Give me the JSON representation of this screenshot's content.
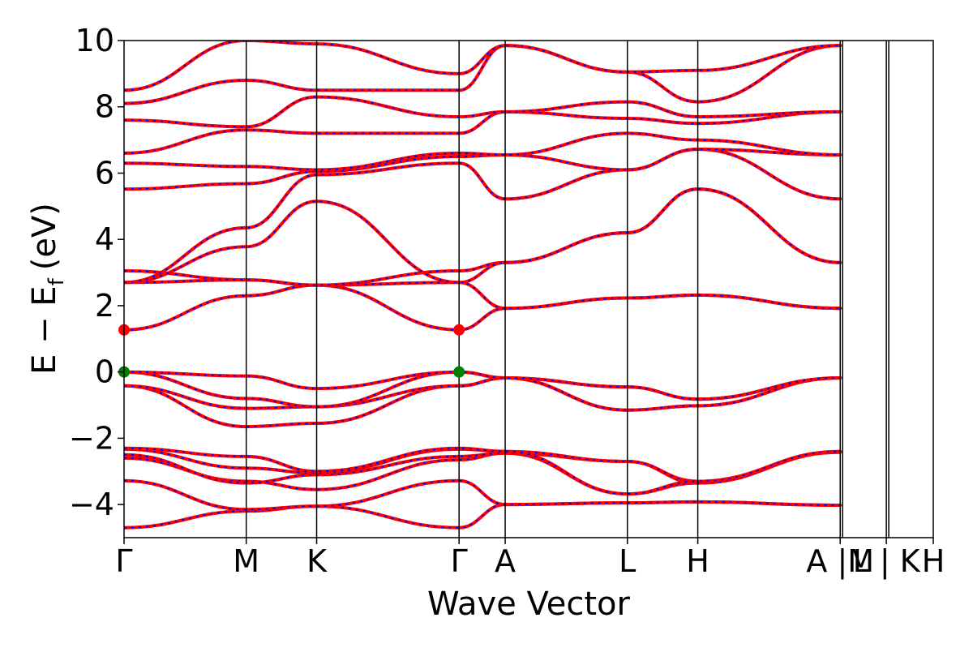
{
  "chart_data": {
    "type": "line",
    "title": "",
    "xlabel": "Wave Vector",
    "ylabel_main": "E − E",
    "ylabel_sub": "f",
    "ylabel_unit": "(eV)",
    "ylim": [
      -5,
      10
    ],
    "yticks": [
      -4,
      -2,
      0,
      2,
      4,
      6,
      8,
      10
    ],
    "ytick_labels": [
      "−4",
      "−2",
      "0",
      "2",
      "4",
      "6",
      "8",
      "10"
    ],
    "xlim": [
      0,
      10
    ],
    "kpoints": [
      {
        "label": "Γ",
        "x": 0.0
      },
      {
        "label": "M",
        "x": 1.51
      },
      {
        "label": "K",
        "x": 2.38
      },
      {
        "label": "Γ",
        "x": 4.14
      },
      {
        "label": "A",
        "x": 4.71
      },
      {
        "label": "L",
        "x": 6.22
      },
      {
        "label": "H",
        "x": 7.09
      },
      {
        "label": "A |M",
        "x": 8.85
      },
      {
        "label": "L | K",
        "x": 9.42
      },
      {
        "label": "H",
        "x": 10.0
      }
    ],
    "extra_dividers": [
      8.85,
      9.42
    ],
    "band_colors": {
      "line": "#ff0000",
      "dash": "#0000ff"
    },
    "grid": false,
    "legend": "none",
    "markers": [
      {
        "name": "cbm",
        "x": 0.0,
        "y": 1.27,
        "color": "#ff0000"
      },
      {
        "name": "cbm",
        "x": 4.14,
        "y": 1.27,
        "color": "#ff0000"
      },
      {
        "name": "vbm",
        "x": 0.0,
        "y": 0.0,
        "color": "#008000"
      },
      {
        "name": "vbm",
        "x": 4.14,
        "y": 0.0,
        "color": "#008000"
      }
    ],
    "bands": [
      {
        "name": "valence-1",
        "points": [
          [
            0,
            -4.7
          ],
          [
            1.51,
            -4.2
          ],
          [
            2.38,
            -4.05
          ],
          [
            4.14,
            -4.7
          ],
          [
            4.71,
            -4.0
          ],
          [
            6.22,
            -3.95
          ],
          [
            7.09,
            -3.92
          ],
          [
            8.85,
            -4.02
          ]
        ]
      },
      {
        "name": "valence-2",
        "points": [
          [
            0,
            -3.28
          ],
          [
            1.51,
            -4.15
          ],
          [
            2.38,
            -4.05
          ],
          [
            4.14,
            -3.28
          ],
          [
            4.71,
            -4.0
          ],
          [
            6.22,
            -3.95
          ],
          [
            7.09,
            -3.92
          ],
          [
            8.85,
            -4.02
          ]
        ]
      },
      {
        "name": "valence-3",
        "points": [
          [
            0,
            -2.6
          ],
          [
            1.51,
            -3.3
          ],
          [
            2.38,
            -3.55
          ],
          [
            4.14,
            -2.65
          ],
          [
            4.71,
            -2.45
          ],
          [
            6.22,
            -3.68
          ],
          [
            7.09,
            -3.35
          ],
          [
            8.85,
            -2.42
          ]
        ]
      },
      {
        "name": "valence-4",
        "points": [
          [
            0,
            -2.5
          ],
          [
            1.51,
            -3.35
          ],
          [
            2.38,
            -3.1
          ],
          [
            4.14,
            -2.55
          ],
          [
            4.71,
            -2.45
          ],
          [
            6.22,
            -2.7
          ],
          [
            7.09,
            -3.35
          ],
          [
            8.85,
            -2.42
          ]
        ]
      },
      {
        "name": "valence-5",
        "points": [
          [
            0,
            -2.33
          ],
          [
            1.51,
            -2.9
          ],
          [
            2.38,
            -3.05
          ],
          [
            4.14,
            -2.33
          ],
          [
            4.71,
            -2.4
          ],
          [
            6.22,
            -2.7
          ],
          [
            7.09,
            -3.3
          ],
          [
            8.85,
            -2.4
          ]
        ]
      },
      {
        "name": "valence-6",
        "points": [
          [
            0,
            -2.3
          ],
          [
            1.51,
            -2.55
          ],
          [
            2.38,
            -3.0
          ],
          [
            4.14,
            -2.3
          ],
          [
            4.71,
            -2.4
          ],
          [
            6.22,
            -3.68
          ],
          [
            7.09,
            -3.3
          ],
          [
            8.85,
            -2.4
          ]
        ]
      },
      {
        "name": "valence-7",
        "points": [
          [
            0,
            -0.42
          ],
          [
            1.51,
            -1.65
          ],
          [
            2.38,
            -1.55
          ],
          [
            4.14,
            -0.42
          ],
          [
            4.71,
            -0.18
          ],
          [
            6.22,
            -1.15
          ],
          [
            7.09,
            -1.02
          ],
          [
            8.85,
            -0.18
          ]
        ]
      },
      {
        "name": "valence-8",
        "points": [
          [
            0,
            -0.42
          ],
          [
            1.51,
            -1.1
          ],
          [
            2.38,
            -1.05
          ],
          [
            4.14,
            -0.42
          ],
          [
            4.71,
            -0.18
          ],
          [
            6.22,
            -1.15
          ],
          [
            7.09,
            -1.02
          ],
          [
            8.85,
            -0.18
          ]
        ]
      },
      {
        "name": "valence-9",
        "points": [
          [
            0,
            0.0
          ],
          [
            1.51,
            -0.8
          ],
          [
            2.38,
            -1.05
          ],
          [
            4.14,
            0.0
          ],
          [
            4.71,
            -0.18
          ],
          [
            6.22,
            -0.45
          ],
          [
            7.09,
            -0.82
          ],
          [
            8.85,
            -0.18
          ]
        ]
      },
      {
        "name": "valence-10",
        "points": [
          [
            0,
            0.0
          ],
          [
            1.51,
            -0.12
          ],
          [
            2.38,
            -0.5
          ],
          [
            4.14,
            0.0
          ],
          [
            4.71,
            -0.18
          ],
          [
            6.22,
            -0.45
          ],
          [
            7.09,
            -0.82
          ],
          [
            8.85,
            -0.18
          ]
        ]
      },
      {
        "name": "conduction-1",
        "points": [
          [
            0,
            1.27
          ],
          [
            1.51,
            2.3
          ],
          [
            2.38,
            2.62
          ],
          [
            4.14,
            1.27
          ],
          [
            4.71,
            1.92
          ],
          [
            6.22,
            2.23
          ],
          [
            7.09,
            2.32
          ],
          [
            8.85,
            1.92
          ]
        ]
      },
      {
        "name": "conduction-2",
        "points": [
          [
            0,
            2.7
          ],
          [
            1.51,
            2.78
          ],
          [
            2.38,
            2.62
          ],
          [
            4.14,
            2.7
          ],
          [
            4.71,
            1.92
          ],
          [
            6.22,
            2.23
          ],
          [
            7.09,
            2.32
          ],
          [
            8.85,
            1.92
          ]
        ]
      },
      {
        "name": "conduction-3",
        "points": [
          [
            0,
            3.05
          ],
          [
            1.51,
            2.78
          ],
          [
            2.38,
            2.62
          ],
          [
            4.14,
            3.05
          ],
          [
            4.71,
            3.3
          ],
          [
            6.22,
            4.2
          ],
          [
            7.09,
            5.52
          ],
          [
            8.85,
            3.3
          ]
        ]
      },
      {
        "name": "conduction-4",
        "points": [
          [
            0,
            2.7
          ],
          [
            1.51,
            3.78
          ],
          [
            2.38,
            5.15
          ],
          [
            4.14,
            2.7
          ],
          [
            4.71,
            3.3
          ],
          [
            6.22,
            4.2
          ],
          [
            7.09,
            5.52
          ],
          [
            8.85,
            3.3
          ]
        ]
      },
      {
        "name": "conduction-5",
        "points": [
          [
            0,
            2.7
          ],
          [
            1.51,
            4.35
          ],
          [
            2.38,
            5.95
          ],
          [
            4.14,
            6.3
          ],
          [
            4.71,
            5.22
          ],
          [
            6.22,
            6.1
          ],
          [
            7.09,
            6.72
          ],
          [
            8.85,
            5.22
          ]
        ]
      },
      {
        "name": "conduction-6",
        "points": [
          [
            0,
            5.52
          ],
          [
            1.51,
            5.68
          ],
          [
            2.38,
            6.05
          ],
          [
            4.14,
            6.5
          ],
          [
            4.71,
            6.55
          ],
          [
            6.22,
            6.1
          ],
          [
            7.09,
            6.72
          ],
          [
            8.85,
            6.55
          ]
        ]
      },
      {
        "name": "conduction-7",
        "points": [
          [
            0,
            6.3
          ],
          [
            1.51,
            6.2
          ],
          [
            2.38,
            6.1
          ],
          [
            4.14,
            6.6
          ],
          [
            4.71,
            6.55
          ],
          [
            6.22,
            7.2
          ],
          [
            7.09,
            7.0
          ],
          [
            8.85,
            6.55
          ]
        ]
      },
      {
        "name": "conduction-8",
        "points": [
          [
            0,
            6.6
          ],
          [
            1.51,
            7.3
          ],
          [
            2.38,
            7.2
          ],
          [
            4.14,
            7.2
          ],
          [
            4.71,
            7.85
          ],
          [
            6.22,
            7.65
          ],
          [
            7.09,
            7.5
          ],
          [
            8.85,
            7.85
          ]
        ]
      },
      {
        "name": "conduction-9",
        "points": [
          [
            0,
            7.6
          ],
          [
            1.51,
            7.4
          ],
          [
            2.38,
            8.3
          ],
          [
            4.14,
            7.7
          ],
          [
            4.71,
            7.85
          ],
          [
            6.22,
            8.15
          ],
          [
            7.09,
            7.7
          ],
          [
            8.85,
            7.85
          ]
        ]
      },
      {
        "name": "conduction-10",
        "points": [
          [
            0,
            8.1
          ],
          [
            1.51,
            8.8
          ],
          [
            2.38,
            8.5
          ],
          [
            4.14,
            8.5
          ],
          [
            4.71,
            9.85
          ],
          [
            6.22,
            9.05
          ],
          [
            7.09,
            8.15
          ],
          [
            8.85,
            9.85
          ]
        ]
      },
      {
        "name": "conduction-11",
        "points": [
          [
            0,
            8.5
          ],
          [
            1.51,
            10.0
          ],
          [
            2.38,
            9.9
          ],
          [
            4.14,
            9.0
          ],
          [
            4.71,
            9.85
          ],
          [
            6.22,
            9.05
          ],
          [
            7.09,
            9.1
          ],
          [
            8.85,
            9.85
          ]
        ]
      }
    ]
  }
}
